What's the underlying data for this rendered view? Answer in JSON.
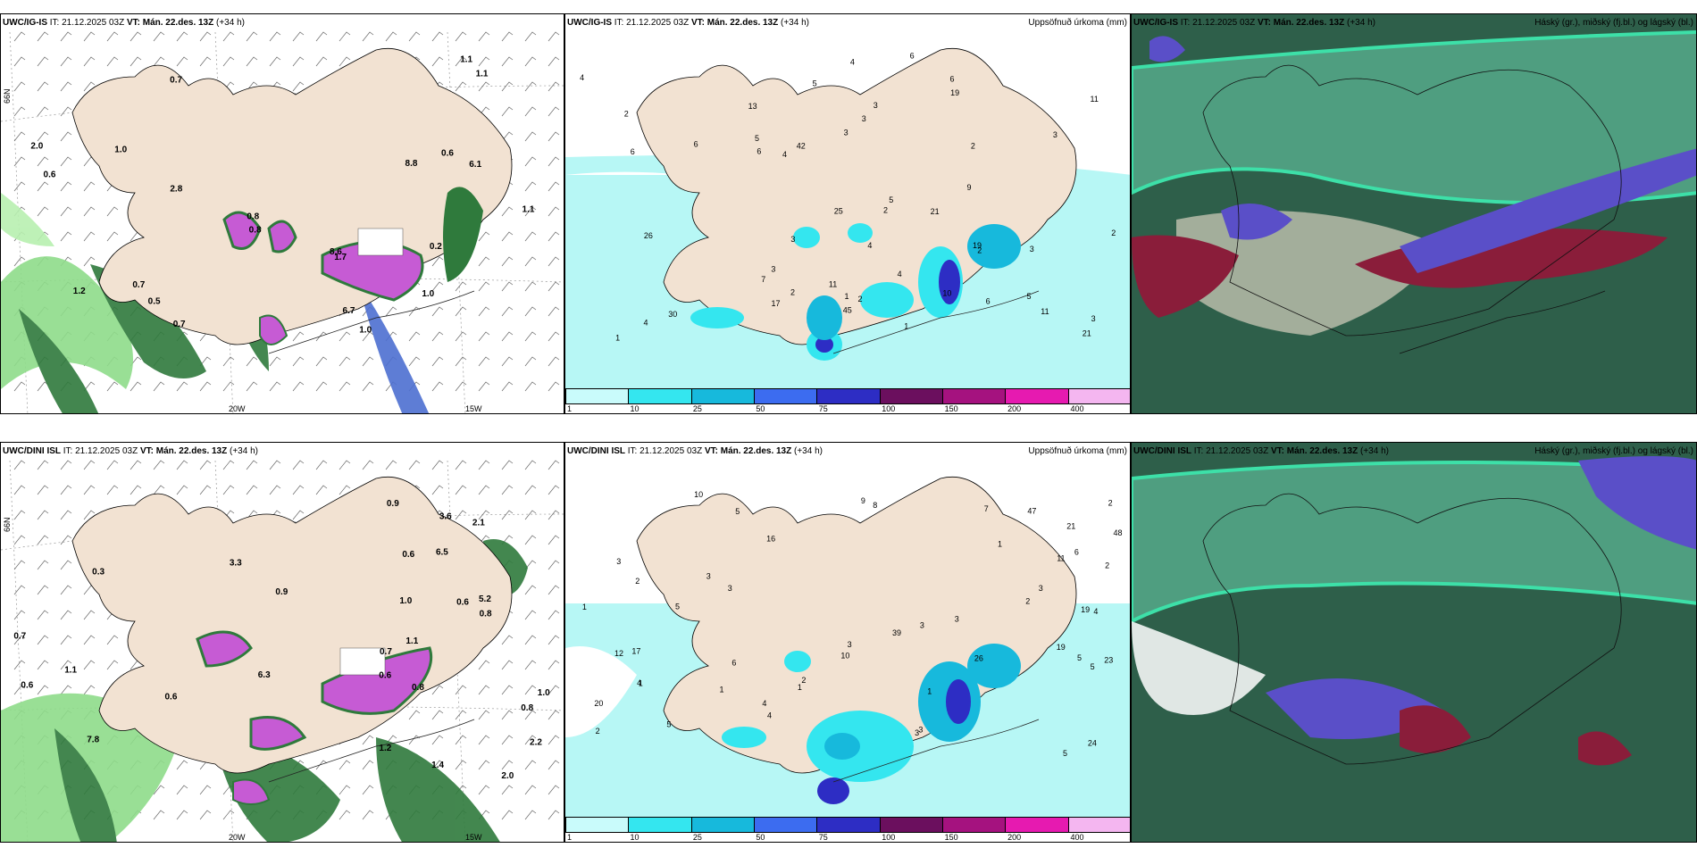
{
  "model_top": "UWC/IG-IS",
  "model_bottom": "UWC/DINI ISL",
  "it_label": "IT:",
  "it_value": "21.12.2025 03Z",
  "vt_label": "VT:",
  "vt_value": "Mán. 22.des. 13Z",
  "lead": "(+34 h)",
  "precip_title": "Uppsöfnuð úrkoma (mm)",
  "cloud_title": "Háský (gr.), miðský (fj.bl.) og lágský (bl.)",
  "lat_label": "66N",
  "lon_labels": [
    "20W",
    "15W"
  ],
  "legend": {
    "labels": [
      "1",
      "10",
      "25",
      "50",
      "75",
      "100",
      "150",
      "200",
      "400"
    ],
    "colors": [
      "#c9fbfb",
      "#34e6ef",
      "#17b9dc",
      "#3c6cf0",
      "#2d2dc4",
      "#6b0f5e",
      "#a5127f",
      "#e61ab0",
      "#f4b6f0"
    ]
  },
  "colors": {
    "land": "#f2e2d2",
    "sea": "#ffffff",
    "precip_light": "#b7f7f5",
    "snow_green": "#2f7a3c",
    "mix_purple": "#c65bd4",
    "cloud_green": "#4f9e80",
    "cloud_dark": "#2e5f4a",
    "cloud_blue": "#5a4fc8",
    "cloud_red": "#8a1d3a"
  },
  "values": {
    "top_wind": [
      "1.0",
      "0.7",
      "0.7",
      "1.0",
      "0.6",
      "6.7",
      "1.1",
      "2.8",
      "0.8",
      "0.5",
      "1.2",
      "2.0",
      "0.8",
      "8.6",
      "8.8",
      "1.1",
      "0.6",
      "1.1",
      "0.2",
      "6.1",
      "1.0",
      "1.7",
      "0.7"
    ],
    "top_precip": [
      "4",
      "3",
      "5",
      "4",
      "5",
      "6",
      "5",
      "6",
      "6",
      "7",
      "21",
      "6",
      "2",
      "4",
      "10",
      "5",
      "19",
      "26",
      "25",
      "11",
      "4",
      "30",
      "45",
      "21",
      "2",
      "19",
      "42",
      "3",
      "3",
      "4",
      "11",
      "3",
      "3",
      "1",
      "2",
      "1",
      "1",
      "2",
      "6",
      "11",
      "6",
      "3",
      "13",
      "17",
      "9",
      "4",
      "3",
      "2",
      "2",
      "3",
      "2"
    ],
    "bot_wind": [
      "0.6",
      "1.0",
      "0.6",
      "0.8",
      "1.2",
      "6.5",
      "5.2",
      "0.9",
      "2.2",
      "1.4",
      "1.1",
      "0.7",
      "0.6",
      "0.8",
      "0.6",
      "2.0",
      "2.1",
      "1.1",
      "3.6",
      "3.3",
      "6.3",
      "0.7",
      "1.0",
      "0.9",
      "0.8",
      "7.8",
      "0.3",
      "0.6"
    ],
    "bot_precip": [
      "3",
      "1",
      "3",
      "4",
      "5",
      "4",
      "5",
      "6",
      "5",
      "10",
      "9",
      "20",
      "3",
      "2",
      "19",
      "10",
      "23",
      "12",
      "4",
      "3",
      "21",
      "47",
      "24",
      "26",
      "48",
      "39",
      "11",
      "6",
      "17",
      "3",
      "5",
      "2",
      "3",
      "2",
      "2",
      "3",
      "1",
      "1",
      "1",
      "2",
      "3",
      "5",
      "7",
      "8",
      "3",
      "5",
      "4",
      "2",
      "19",
      "16",
      "1",
      "1"
    ]
  }
}
